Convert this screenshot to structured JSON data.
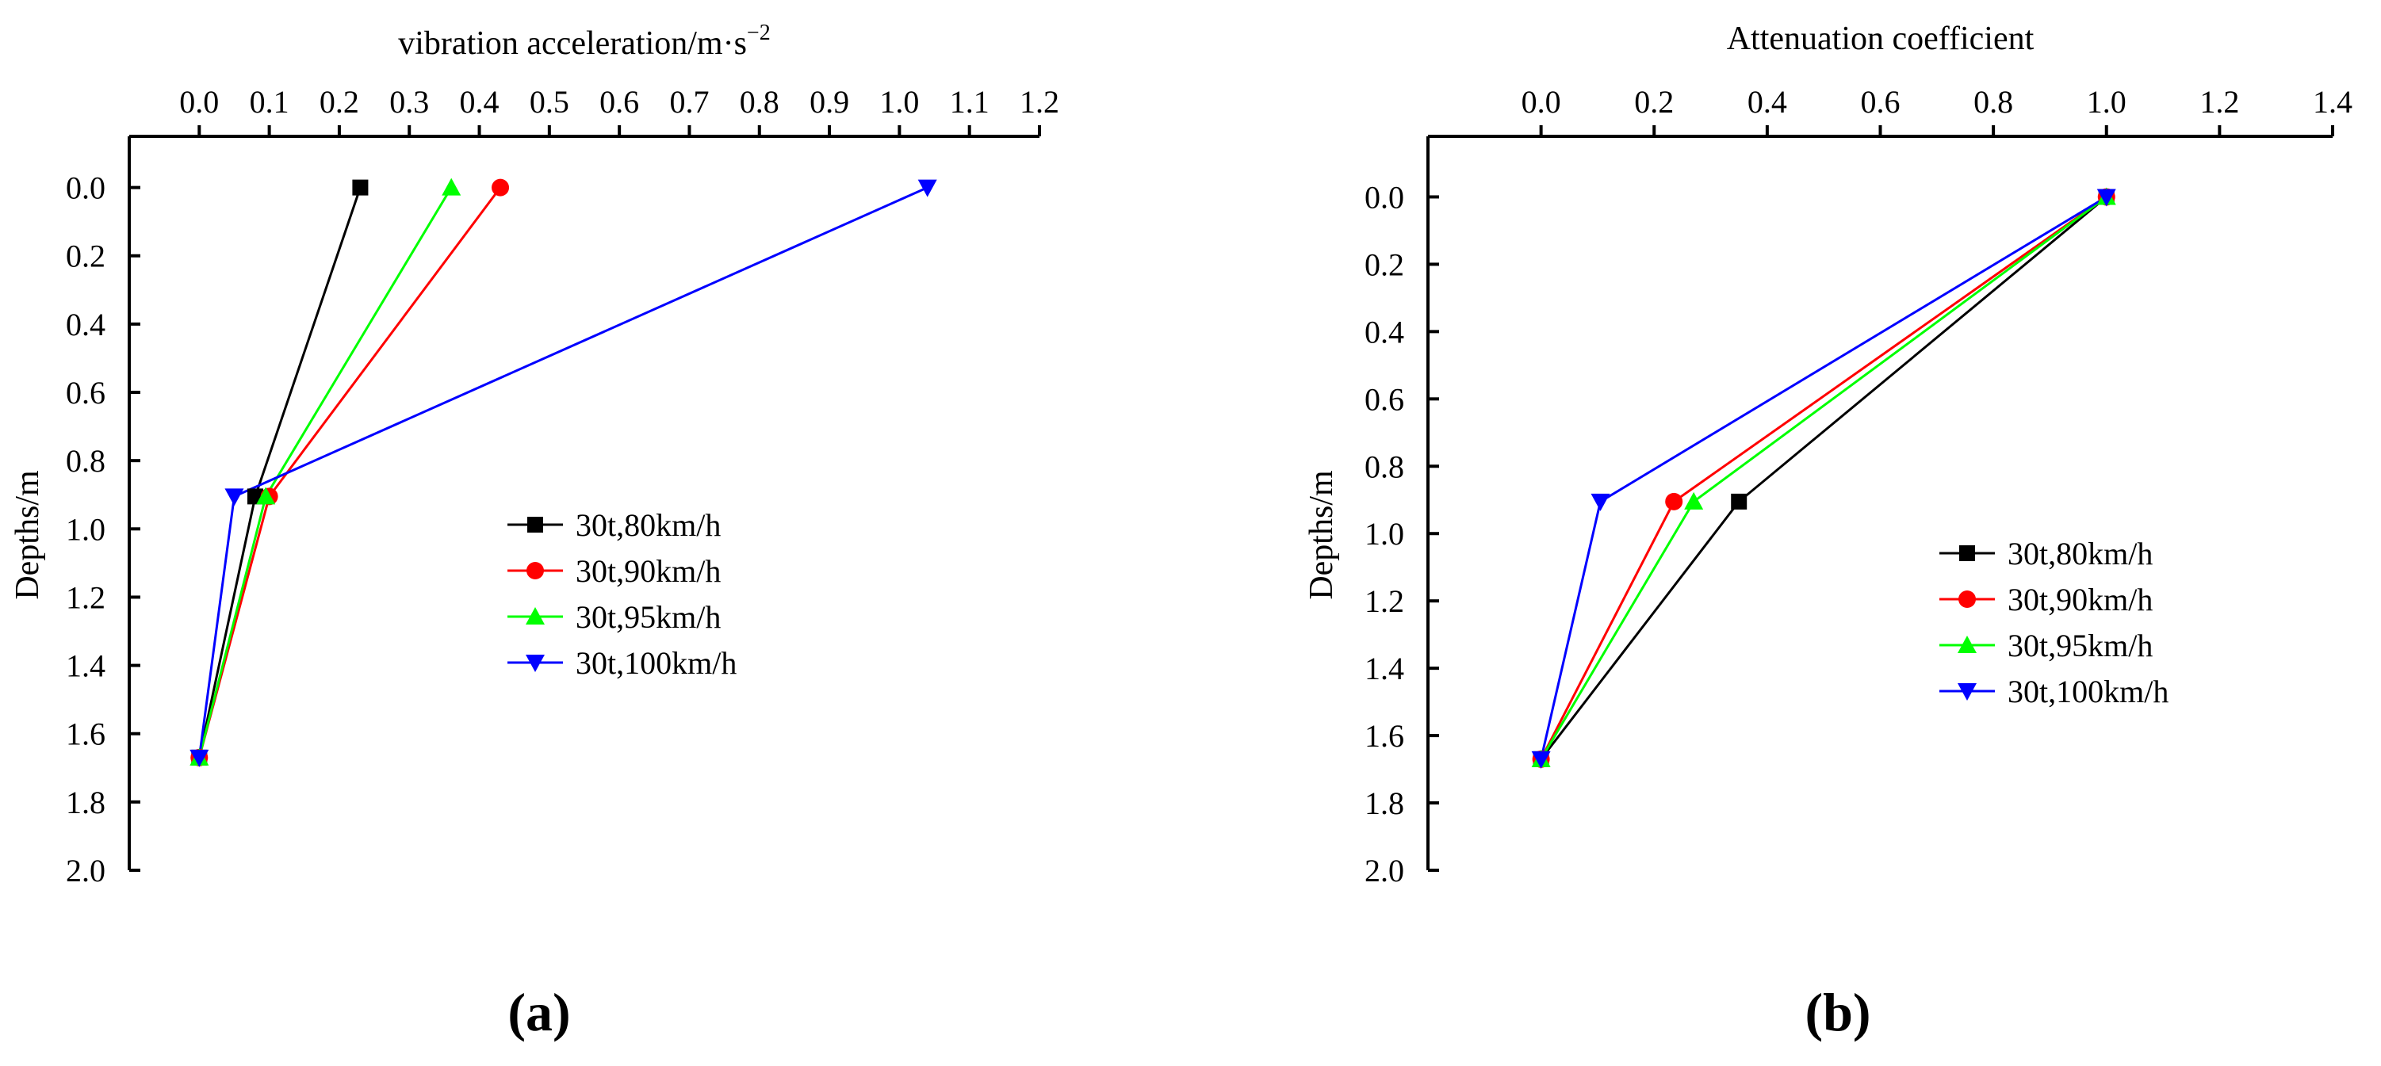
{
  "panel_labels": {
    "a": "(a)",
    "b": "(b)"
  },
  "chart_data": [
    {
      "type": "line",
      "panel": "a",
      "title": "",
      "xlabel": "vibration acceleration/m·s",
      "xlabel_superscript": "−2",
      "ylabel": "Depths/m",
      "x_axis_position": "top",
      "y_axis_inverted": true,
      "xlim": [
        -0.1,
        1.2
      ],
      "ylim": [
        -0.15,
        2.0
      ],
      "xticks": [
        "0.0",
        "0.1",
        "0.2",
        "0.3",
        "0.4",
        "0.5",
        "0.6",
        "0.7",
        "0.8",
        "0.9",
        "1.0",
        "1.1",
        "1.2"
      ],
      "yticks": [
        "0.0",
        "0.2",
        "0.4",
        "0.6",
        "0.8",
        "1.0",
        "1.2",
        "1.4",
        "1.6",
        "1.8",
        "2.0"
      ],
      "grid": false,
      "legend_position": "middle-right",
      "series": [
        {
          "name": "30t,80km/h",
          "color": "#000000",
          "marker": "square",
          "points": [
            [
              0.23,
              0.0
            ],
            [
              0.08,
              0.905
            ],
            [
              0.0,
              1.67
            ]
          ]
        },
        {
          "name": "30t,90km/h",
          "color": "#ff0000",
          "marker": "circle",
          "points": [
            [
              0.43,
              0.0
            ],
            [
              0.1,
              0.905
            ],
            [
              0.0,
              1.67
            ]
          ]
        },
        {
          "name": "30t,95km/h",
          "color": "#00ff00",
          "marker": "triangle-up",
          "points": [
            [
              0.36,
              0.0
            ],
            [
              0.095,
              0.905
            ],
            [
              0.0,
              1.67
            ]
          ]
        },
        {
          "name": "30t,100km/h",
          "color": "#0000ff",
          "marker": "triangle-down",
          "points": [
            [
              1.04,
              0.0
            ],
            [
              0.05,
              0.905
            ],
            [
              0.0,
              1.67
            ]
          ]
        }
      ]
    },
    {
      "type": "line",
      "panel": "b",
      "title": "",
      "xlabel": "Attenuation coefficient",
      "ylabel": "Depths/m",
      "x_axis_position": "top",
      "y_axis_inverted": true,
      "xlim": [
        -0.2,
        1.4
      ],
      "ylim": [
        -0.18,
        2.0
      ],
      "xticks": [
        "0.0",
        "0.2",
        "0.4",
        "0.6",
        "0.8",
        "1.0",
        "1.2",
        "1.4"
      ],
      "yticks": [
        "0.0",
        "0.2",
        "0.4",
        "0.6",
        "0.8",
        "1.0",
        "1.2",
        "1.4",
        "1.6",
        "1.8",
        "2.0"
      ],
      "grid": false,
      "legend_position": "middle-right",
      "series": [
        {
          "name": "30t,80km/h",
          "color": "#000000",
          "marker": "square",
          "points": [
            [
              1.0,
              0.0
            ],
            [
              0.35,
              0.905
            ],
            [
              0.0,
              1.67
            ]
          ]
        },
        {
          "name": "30t,90km/h",
          "color": "#ff0000",
          "marker": "circle",
          "points": [
            [
              1.0,
              0.0
            ],
            [
              0.235,
              0.905
            ],
            [
              0.0,
              1.67
            ]
          ]
        },
        {
          "name": "30t,95km/h",
          "color": "#00ff00",
          "marker": "triangle-up",
          "points": [
            [
              1.0,
              0.0
            ],
            [
              0.27,
              0.905
            ],
            [
              0.0,
              1.67
            ]
          ]
        },
        {
          "name": "30t,100km/h",
          "color": "#0000ff",
          "marker": "triangle-down",
          "points": [
            [
              1.0,
              0.0
            ],
            [
              0.105,
              0.905
            ],
            [
              0.0,
              1.67
            ]
          ]
        }
      ]
    }
  ]
}
